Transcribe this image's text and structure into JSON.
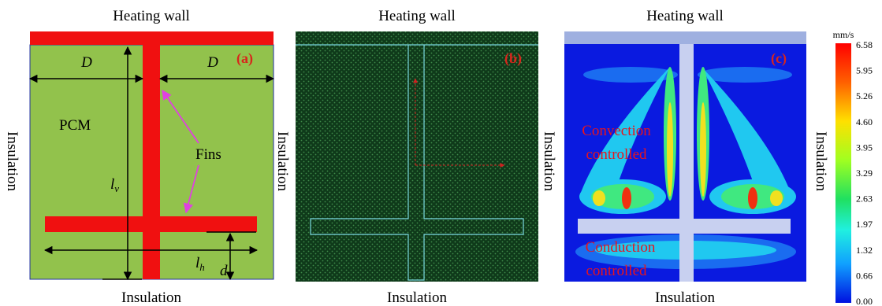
{
  "panel_a": {
    "top": "Heating wall",
    "left": "Insulation",
    "bottom": "Insulation",
    "tag": "(a)",
    "dim_left": "D",
    "dim_right": "D",
    "material": "PCM",
    "fins": "Fins",
    "lv": {
      "main": "l",
      "sub": "v"
    },
    "lh": {
      "main": "l",
      "sub": "h"
    },
    "d": "d"
  },
  "panel_b": {
    "top": "Heating wall",
    "left": "Insulation",
    "bottom": "Insulation",
    "tag": "(b)"
  },
  "panel_c": {
    "top": "Heating wall",
    "left": "Insulation",
    "right": "Insulation",
    "bottom": "Insulation",
    "tag": "(c)",
    "upper_region": [
      "Convection",
      "controlled"
    ],
    "lower_region": [
      "Conduction",
      "controlled"
    ]
  },
  "colorbar": {
    "unit": "mm/s",
    "ticks": [
      "6.58",
      "5.95",
      "5.26",
      "4.60",
      "3.95",
      "3.29",
      "2.63",
      "1.97",
      "1.32",
      "0.66",
      "0.00"
    ]
  }
}
